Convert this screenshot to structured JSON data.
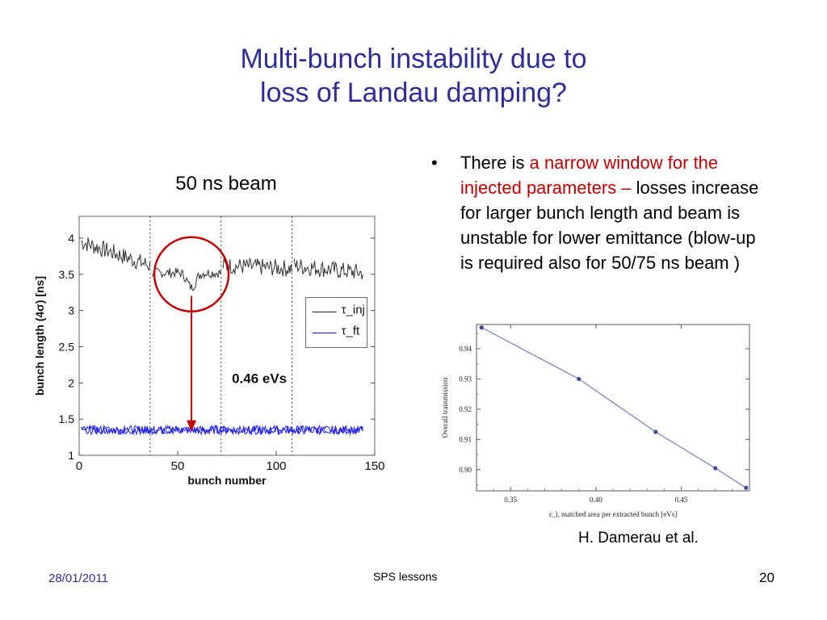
{
  "slide": {
    "title_line1": "Multi-bunch instability due to",
    "title_line2": "loss of Landau damping?",
    "subtitle": "50 ns beam",
    "bullet": {
      "symbol": "•",
      "part1": "There is ",
      "part2_red": "a narrow window for the injected parameters – ",
      "part3": "losses increase for larger bunch length and beam is unstable for lower emittance (blow-up is required also for 50/75 ns beam )"
    },
    "credit": "H. Damerau et al.",
    "footer": {
      "date": "28/01/2011",
      "center": "SPS lessons",
      "page": "20"
    },
    "colors": {
      "title": "#2e2e9a",
      "highlight": "#c00000",
      "series_blue": "#1f1fe6",
      "series_black": "#333333"
    }
  },
  "chart_data": [
    {
      "type": "line",
      "title": "",
      "xlabel": "bunch number",
      "ylabel": "bunch length (4σ) [ns]",
      "xlim": [
        0,
        150
      ],
      "ylim": [
        1,
        4.3
      ],
      "xticks": [
        0,
        50,
        100,
        150
      ],
      "yticks": [
        1,
        1.5,
        2,
        2.5,
        3,
        3.5,
        4
      ],
      "vlines": [
        36,
        72,
        108
      ],
      "legend": {
        "entries": [
          "τ_inj",
          "τ_ft"
        ],
        "placement": "right"
      },
      "series": [
        {
          "name": "τ_inj",
          "color": "#333333",
          "segments": [
            {
              "x_range": [
                1,
                36
              ],
              "start": 3.95,
              "end": 3.62,
              "noise": 0.12
            },
            {
              "x_range": [
                37,
                72
              ],
              "start": 3.52,
              "end": 3.52,
              "noise": 0.07,
              "dip_at": 57,
              "dip_to": 3.32
            },
            {
              "x_range": [
                73,
                108
              ],
              "start": 3.62,
              "end": 3.58,
              "noise": 0.12
            },
            {
              "x_range": [
                109,
                144
              ],
              "start": 3.62,
              "end": 3.52,
              "noise": 0.12
            }
          ]
        },
        {
          "name": "τ_ft",
          "color": "#1f1fe6",
          "value": 1.35,
          "x_range": [
            1,
            144
          ],
          "noise": 0.06
        }
      ],
      "annotations": [
        {
          "type": "circle",
          "x": 57,
          "y": 3.5,
          "label": ""
        },
        {
          "type": "arrow",
          "x": 57,
          "from_y": 3.2,
          "to_y": 1.35,
          "label": "0.46 eVs"
        }
      ]
    },
    {
      "type": "line",
      "title": "",
      "xlabel": "ε_l, matched area per extracted bunch [eVs]",
      "ylabel": "Overall transmission",
      "xlim": [
        0.33,
        0.49
      ],
      "ylim": [
        0.893,
        0.948
      ],
      "xticks": [
        "0.35",
        "0.40",
        "0.45"
      ],
      "yticks": [
        "0.90",
        "0.91",
        "0.92",
        "0.93",
        "0.94"
      ],
      "x": [
        0.333,
        0.39,
        0.435,
        0.47,
        0.488
      ],
      "y": [
        0.947,
        0.93,
        0.9125,
        0.9005,
        0.894
      ]
    }
  ]
}
